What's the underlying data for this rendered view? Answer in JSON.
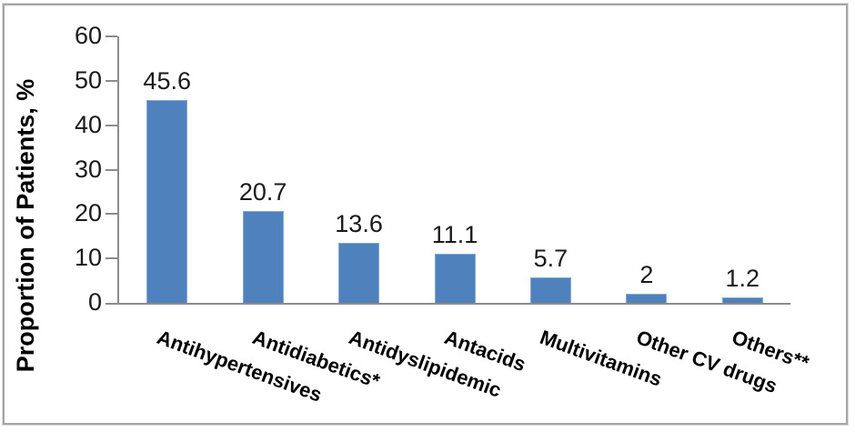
{
  "frame": {
    "border_color": "#a6a6a6",
    "background": "#ffffff"
  },
  "chart_data": {
    "type": "bar",
    "title": "",
    "categories": [
      "Antihypertensives",
      "Antidiabetics*",
      "Antidyslipidemic",
      "Antacids",
      "Multivitamins",
      "Other CV drugs",
      "Others**"
    ],
    "values": [
      45.6,
      20.7,
      13.6,
      11.1,
      5.7,
      2,
      1.2
    ],
    "value_labels": [
      "45.6",
      "20.7",
      "13.6",
      "11.1",
      "5.7",
      "2",
      "1.2"
    ],
    "xlabel": "",
    "ylabel": "Proportion of Patients, %",
    "ylim": [
      0,
      60
    ],
    "yticks": [
      0,
      10,
      20,
      30,
      40,
      50,
      60
    ],
    "grid": false,
    "legend": false,
    "data_labels_shown": true,
    "category_rotation_deg": 20,
    "colors": {
      "bar_fill": "#4F81BD",
      "bar_edge": "#84A9D6",
      "axis": "#8C8C8C",
      "text": "#1A1A1A"
    }
  }
}
